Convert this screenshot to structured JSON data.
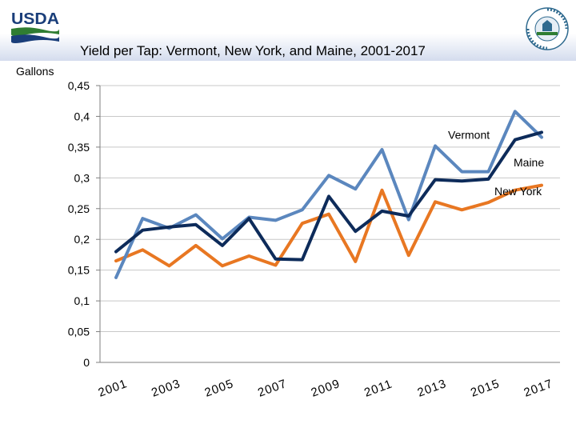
{
  "header": {
    "logo_text": "USDA",
    "seal_text": "AGRICULTURE COUNTS"
  },
  "chart_data": {
    "type": "line",
    "title": "Yield per Tap: Vermont, New York, and Maine, 2001-2017",
    "ylabel": "Gallons",
    "xlabel": "",
    "ylim": [
      0,
      0.45
    ],
    "yticks": [
      "0",
      "0,05",
      "0,1",
      "0,15",
      "0,2",
      "0,25",
      "0,3",
      "0,35",
      "0,4",
      "0,45"
    ],
    "x": [
      2001,
      2002,
      2003,
      2004,
      2005,
      2006,
      2007,
      2008,
      2009,
      2010,
      2011,
      2012,
      2013,
      2014,
      2015,
      2016,
      2017
    ],
    "xtick_labels": [
      "2001",
      "2003",
      "2005",
      "2007",
      "2009",
      "2011",
      "2013",
      "2015",
      "2017"
    ],
    "grid": true,
    "series": [
      {
        "name": "Vermont",
        "color": "#5b87be",
        "values": [
          0.138,
          0.234,
          0.218,
          0.24,
          0.201,
          0.236,
          0.231,
          0.248,
          0.304,
          0.282,
          0.346,
          0.232,
          0.352,
          0.31,
          0.31,
          0.408,
          0.366
        ]
      },
      {
        "name": "Maine",
        "color": "#0d2b5a",
        "values": [
          0.18,
          0.215,
          0.22,
          0.224,
          0.19,
          0.234,
          0.168,
          0.167,
          0.27,
          0.213,
          0.246,
          0.238,
          0.297,
          0.295,
          0.298,
          0.362,
          0.374
        ]
      },
      {
        "name": "New York",
        "color": "#e87722",
        "values": [
          0.165,
          0.183,
          0.157,
          0.19,
          0.157,
          0.173,
          0.158,
          0.226,
          0.241,
          0.164,
          0.28,
          0.174,
          0.261,
          0.248,
          0.26,
          0.28,
          0.288
        ]
      }
    ]
  }
}
